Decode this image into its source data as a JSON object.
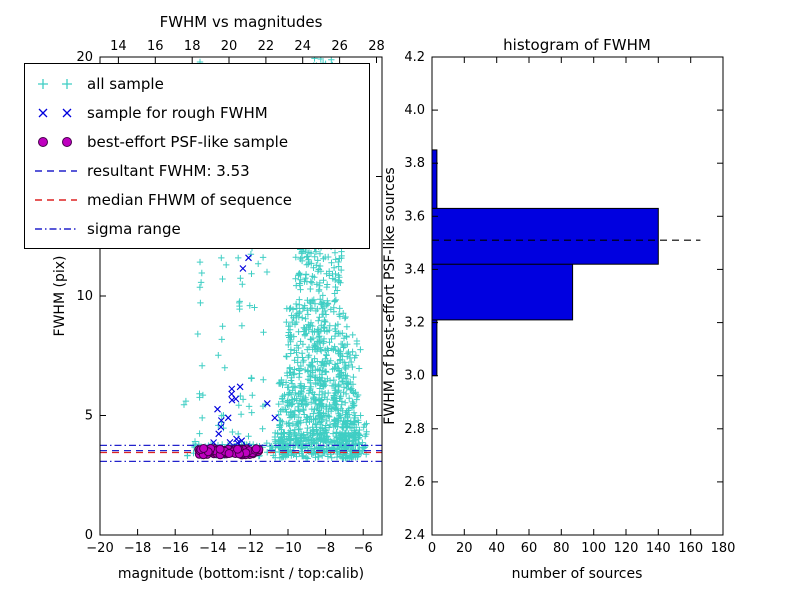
{
  "figure": {
    "bg": "#ffffff"
  },
  "chart_data": [
    {
      "type": "scatter",
      "title": "FWHM vs magnitudes",
      "xlabel": "magnitude (bottom:isnt / top:calib)",
      "ylabel": "FWHM (pix)",
      "xlim": [
        -20,
        -5
      ],
      "ylim": [
        0,
        20
      ],
      "x_ticks": [
        {
          "v": -20,
          "label": "−20"
        },
        {
          "v": -18,
          "label": "−18"
        },
        {
          "v": -16,
          "label": "−16"
        },
        {
          "v": -14,
          "label": "−14"
        },
        {
          "v": -12,
          "label": "−12"
        },
        {
          "v": -10,
          "label": "−10"
        },
        {
          "v": -8,
          "label": "−8"
        },
        {
          "v": -6,
          "label": "−6"
        }
      ],
      "y_ticks": [
        {
          "v": 0,
          "label": "0"
        },
        {
          "v": 5,
          "label": "5"
        },
        {
          "v": 10,
          "label": "10"
        },
        {
          "v": 15,
          "label": "15"
        },
        {
          "v": 20,
          "label": "20"
        }
      ],
      "top_axis": {
        "range": [
          13.0,
          28.3
        ],
        "ticks": [
          {
            "v": 14,
            "label": "14"
          },
          {
            "v": 16,
            "label": "16"
          },
          {
            "v": 18,
            "label": "18"
          },
          {
            "v": 20,
            "label": "20"
          },
          {
            "v": 22,
            "label": "22"
          },
          {
            "v": 24,
            "label": "24"
          },
          {
            "v": 26,
            "label": "26"
          },
          {
            "v": 28,
            "label": "28"
          }
        ]
      },
      "series": [
        {
          "name": "all sample",
          "marker": "plus",
          "color": "#3fcec4",
          "clusters": [
            {
              "x": [
                -15.4,
                -10.7
              ],
              "y": [
                3.3,
                3.8
              ],
              "n": 90
            },
            {
              "x": [
                -10.7,
                -6.2
              ],
              "y": [
                3.2,
                4.3
              ],
              "n": 340
            },
            {
              "x": [
                -10.5,
                -6.4
              ],
              "y": [
                4.3,
                6.5
              ],
              "n": 310
            },
            {
              "x": [
                -10.1,
                -6.8
              ],
              "y": [
                6.5,
                9.5
              ],
              "n": 230
            },
            {
              "x": [
                -9.6,
                -7.1
              ],
              "y": [
                9.5,
                13.5
              ],
              "n": 160
            },
            {
              "x": [
                -9.1,
                -7.3
              ],
              "y": [
                13.5,
                17.5
              ],
              "n": 110
            },
            {
              "x": [
                -8.9,
                -7.5
              ],
              "y": [
                17.5,
                20.0
              ],
              "n": 70
            },
            {
              "x": [
                -8.6,
                -7.9
              ],
              "y": [
                4.8,
                20.0
              ],
              "n": 90
            },
            {
              "x": [
                -14.75,
                -14.55
              ],
              "y": [
                3.8,
                20.0
              ],
              "n": 16
            },
            {
              "x": [
                -13.55,
                -13.35
              ],
              "y": [
                4.0,
                19.0
              ],
              "n": 13
            },
            {
              "x": [
                -12.65,
                -12.45
              ],
              "y": [
                4.0,
                20.0
              ],
              "n": 15
            },
            {
              "x": [
                -12.05,
                -11.85
              ],
              "y": [
                4.5,
                20.0
              ],
              "n": 11
            },
            {
              "x": [
                -11.35,
                -11.15
              ],
              "y": [
                3.9,
                20.0
              ],
              "n": 13
            },
            {
              "x": [
                -15.6,
                -10.7
              ],
              "y": [
                3.8,
                20.0
              ],
              "n": 55
            },
            {
              "x": [
                -7.1,
                -5.8
              ],
              "y": [
                3.2,
                4.8
              ],
              "n": 70
            },
            {
              "x": [
                -7.3,
                -6.1
              ],
              "y": [
                4.8,
                8.5
              ],
              "n": 55
            }
          ]
        },
        {
          "name": "sample for rough FWHM",
          "marker": "x",
          "color": "#0000dd",
          "clusters": [
            {
              "x": [
                -14.3,
                -11.5
              ],
              "y": [
                3.45,
                4.1
              ],
              "n": 13
            },
            {
              "x": [
                -13.8,
                -11.0
              ],
              "y": [
                4.1,
                6.3
              ],
              "n": 8
            }
          ],
          "points": [
            [
              -12.1,
              11.6
            ],
            [
              -11.85,
              12.85
            ],
            [
              -12.4,
              11.15
            ],
            [
              -13.0,
              5.9
            ],
            [
              -11.1,
              5.5
            ],
            [
              -12.55,
              6.2
            ],
            [
              -10.7,
              4.9
            ]
          ]
        },
        {
          "name": "best-effort PSF-like sample",
          "marker": "circle",
          "color": "#bf00bf",
          "edge_color": "#46004b",
          "clusters": [
            {
              "x": [
                -14.75,
                -11.55
              ],
              "y": [
                3.35,
                3.62
              ],
              "n": 72
            }
          ]
        }
      ],
      "hlines": [
        {
          "name": "resultant FWHM: 3.53",
          "y": 3.53,
          "style": "dashed",
          "color": "#2222cc"
        },
        {
          "name": "median FHWM of sequence",
          "y": 3.45,
          "style": "dashed",
          "color": "#dd2222"
        },
        {
          "name": "sigma range upper",
          "y": 3.75,
          "style": "dashdot",
          "color": "#2222cc"
        },
        {
          "name": "sigma range lower",
          "y": 3.08,
          "style": "dashdot",
          "color": "#2222cc"
        }
      ],
      "legend": [
        {
          "label": "all sample",
          "key": "plus",
          "color": "#3fcec4"
        },
        {
          "label": "sample for rough FWHM",
          "key": "x",
          "color": "#0000dd"
        },
        {
          "label": "best-effort PSF-like sample",
          "key": "circle",
          "color": "#bf00bf"
        },
        {
          "label": "resultant FWHM: 3.53",
          "key": "dashed",
          "color": "#2222cc"
        },
        {
          "label": "median FHWM of sequence",
          "key": "dashed",
          "color": "#dd2222"
        },
        {
          "label": "sigma range",
          "key": "dashdot",
          "color": "#2222cc"
        }
      ]
    },
    {
      "type": "bar-horizontal",
      "title": "histogram of FWHM",
      "xlabel": "number of sources",
      "ylabel": "FWHM of best-effort PSF-like sources",
      "xlim": [
        0,
        180
      ],
      "ylim": [
        2.4,
        4.2
      ],
      "x_ticks": [
        {
          "v": 0,
          "label": "0"
        },
        {
          "v": 20,
          "label": "20"
        },
        {
          "v": 40,
          "label": "40"
        },
        {
          "v": 60,
          "label": "60"
        },
        {
          "v": 80,
          "label": "80"
        },
        {
          "v": 100,
          "label": "100"
        },
        {
          "v": 120,
          "label": "120"
        },
        {
          "v": 140,
          "label": "140"
        },
        {
          "v": 160,
          "label": "160"
        },
        {
          "v": 180,
          "label": "180"
        }
      ],
      "y_ticks": [
        {
          "v": 2.4,
          "label": "2.4"
        },
        {
          "v": 2.6,
          "label": "2.6"
        },
        {
          "v": 2.8,
          "label": "2.8"
        },
        {
          "v": 3.0,
          "label": "3.0"
        },
        {
          "v": 3.2,
          "label": "3.2"
        },
        {
          "v": 3.4,
          "label": "3.4"
        },
        {
          "v": 3.6,
          "label": "3.6"
        },
        {
          "v": 3.8,
          "label": "3.8"
        },
        {
          "v": 4.0,
          "label": "4.0"
        },
        {
          "v": 4.2,
          "label": "4.2"
        }
      ],
      "bar_color": "#0000e0",
      "bins": [
        {
          "from": 3.0,
          "to": 3.21,
          "count": 3
        },
        {
          "from": 3.21,
          "to": 3.42,
          "count": 87
        },
        {
          "from": 3.42,
          "to": 3.63,
          "count": 140
        },
        {
          "from": 3.63,
          "to": 3.85,
          "count": 3
        }
      ],
      "dashed_line": {
        "y": 3.51,
        "x_start": 0,
        "x_end": 166,
        "color": "#000000",
        "style": "dashed"
      }
    }
  ]
}
